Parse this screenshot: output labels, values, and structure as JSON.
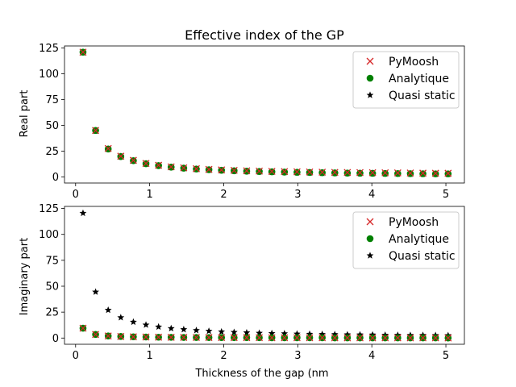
{
  "chart_data": [
    {
      "type": "scatter",
      "title": "Effective index of the GP",
      "xlabel": "",
      "ylabel": "Real part",
      "xlim": [
        -0.15,
        5.25
      ],
      "ylim": [
        -6,
        127
      ],
      "xticks": [
        0,
        1,
        2,
        3,
        4,
        5
      ],
      "yticks": [
        0,
        25,
        50,
        75,
        100,
        125
      ],
      "legend": {
        "position": "top-right",
        "entries": [
          {
            "name": "PyMoosh",
            "marker": "x",
            "color": "#d62728"
          },
          {
            "name": "Analytique",
            "marker": "circle",
            "color": "#008000"
          },
          {
            "name": "Quasi static",
            "marker": "star",
            "color": "#000000"
          }
        ]
      },
      "x": [
        0.1,
        0.27,
        0.44,
        0.61,
        0.78,
        0.95,
        1.12,
        1.29,
        1.46,
        1.63,
        1.8,
        1.97,
        2.14,
        2.31,
        2.48,
        2.65,
        2.82,
        2.99,
        3.16,
        3.33,
        3.5,
        3.67,
        3.84,
        4.01,
        4.18,
        4.35,
        4.52,
        4.69,
        4.86,
        5.03
      ],
      "series": [
        {
          "name": "PyMoosh",
          "values": [
            121,
            45,
            27.5,
            20,
            16,
            13,
            11.2,
            9.7,
            8.7,
            7.9,
            7.2,
            6.7,
            6.3,
            5.9,
            5.6,
            5.3,
            5.1,
            4.9,
            4.7,
            4.5,
            4.3,
            4.2,
            4.1,
            4,
            3.9,
            3.8,
            3.7,
            3.6,
            3.5,
            3.5
          ]
        },
        {
          "name": "Analytique",
          "values": [
            121,
            45,
            27,
            19.7,
            15.7,
            12.7,
            10.9,
            9.4,
            8.4,
            7.6,
            6.9,
            6.4,
            5.9,
            5.5,
            5.2,
            4.9,
            4.6,
            4.4,
            4.2,
            4,
            3.8,
            3.6,
            3.5,
            3.4,
            3.3,
            3.2,
            3.1,
            3,
            2.9,
            2.9
          ]
        },
        {
          "name": "Quasi static",
          "values": [
            120.5,
            44.5,
            27,
            19.8,
            15.5,
            12.7,
            10.8,
            9.3,
            8.3,
            7.4,
            6.7,
            6.1,
            5.6,
            5.2,
            4.8,
            4.5,
            4.3,
            4,
            3.8,
            3.6,
            3.5,
            3.3,
            3.2,
            3.1,
            2.9,
            2.8,
            2.7,
            2.7,
            2.6,
            2.5
          ]
        }
      ]
    },
    {
      "type": "scatter",
      "title": "",
      "xlabel": "Thickness of the gap (nm",
      "ylabel": "Imaginary part",
      "xlim": [
        -0.15,
        5.25
      ],
      "ylim": [
        -6,
        127
      ],
      "xticks": [
        0,
        1,
        2,
        3,
        4,
        5
      ],
      "yticks": [
        0,
        25,
        50,
        75,
        100,
        125
      ],
      "legend": {
        "position": "top-right",
        "entries": [
          {
            "name": "PyMoosh",
            "marker": "x",
            "color": "#d62728"
          },
          {
            "name": "Analytique",
            "marker": "circle",
            "color": "#008000"
          },
          {
            "name": "Quasi static",
            "marker": "star",
            "color": "#000000"
          }
        ]
      },
      "x": [
        0.1,
        0.27,
        0.44,
        0.61,
        0.78,
        0.95,
        1.12,
        1.29,
        1.46,
        1.63,
        1.8,
        1.97,
        2.14,
        2.31,
        2.48,
        2.65,
        2.82,
        2.99,
        3.16,
        3.33,
        3.5,
        3.67,
        3.84,
        4.01,
        4.18,
        4.35,
        4.52,
        4.69,
        4.86,
        5.03
      ],
      "series": [
        {
          "name": "PyMoosh",
          "values": [
            9.5,
            3.5,
            2,
            1.5,
            1.2,
            1,
            0.8,
            0.7,
            0.6,
            0.55,
            0.5,
            0.45,
            0.4,
            0.4,
            0.35,
            0.3,
            0.3,
            0.3,
            0.25,
            0.25,
            0.2,
            0.2,
            0.2,
            0.2,
            0.2,
            0.15,
            0.15,
            0.15,
            0.15,
            0.1
          ]
        },
        {
          "name": "Analytique",
          "values": [
            9.5,
            3.5,
            2,
            1.5,
            1.2,
            1,
            0.8,
            0.7,
            0.6,
            0.55,
            0.5,
            0.45,
            0.4,
            0.4,
            0.35,
            0.3,
            0.3,
            0.3,
            0.25,
            0.25,
            0.2,
            0.2,
            0.2,
            0.2,
            0.2,
            0.15,
            0.15,
            0.15,
            0.15,
            0.1
          ]
        },
        {
          "name": "Quasi static",
          "values": [
            120.5,
            44.5,
            27,
            19.8,
            15.5,
            12.7,
            10.8,
            9.3,
            8.3,
            7.4,
            6.7,
            6.1,
            5.6,
            5.2,
            4.8,
            4.5,
            4.3,
            4,
            3.8,
            3.6,
            3.5,
            3.3,
            3.2,
            3.1,
            2.9,
            2.8,
            2.7,
            2.7,
            2.6,
            2.5
          ]
        }
      ]
    }
  ]
}
